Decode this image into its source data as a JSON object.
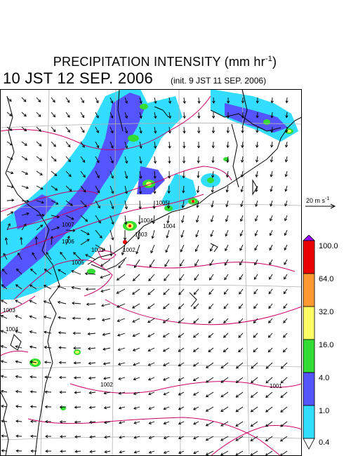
{
  "header": {
    "title": "PRECIPITATION INTENSITY (mm hr",
    "title_exp": "-1",
    "title_close": ")",
    "valid_time": "10 JST 12 SEP. 2006",
    "init_time": "(init. 9 JST 11 SEP. 2006)"
  },
  "wind_reference": {
    "label": "20 m s",
    "label_exp": "-1"
  },
  "legend": {
    "levels": [
      "100.0",
      "64.0",
      "32.0",
      "16.0",
      "4.0",
      "1.0",
      "0.4"
    ],
    "colors": [
      "#9900ff",
      "#ee0000",
      "#ff9933",
      "#ffff66",
      "#33dd33",
      "#5555ff",
      "#33ddff"
    ]
  },
  "pressure_labels": [
    "1007",
    "1006",
    "1005",
    "1004",
    "1003",
    "1002",
    "1001",
    "1004",
    "1005",
    "1003",
    "1004",
    "1002",
    "1001"
  ],
  "colors": {
    "isobar": "#cc0066",
    "coast": "#000000",
    "grid": "#b0b0b0"
  }
}
